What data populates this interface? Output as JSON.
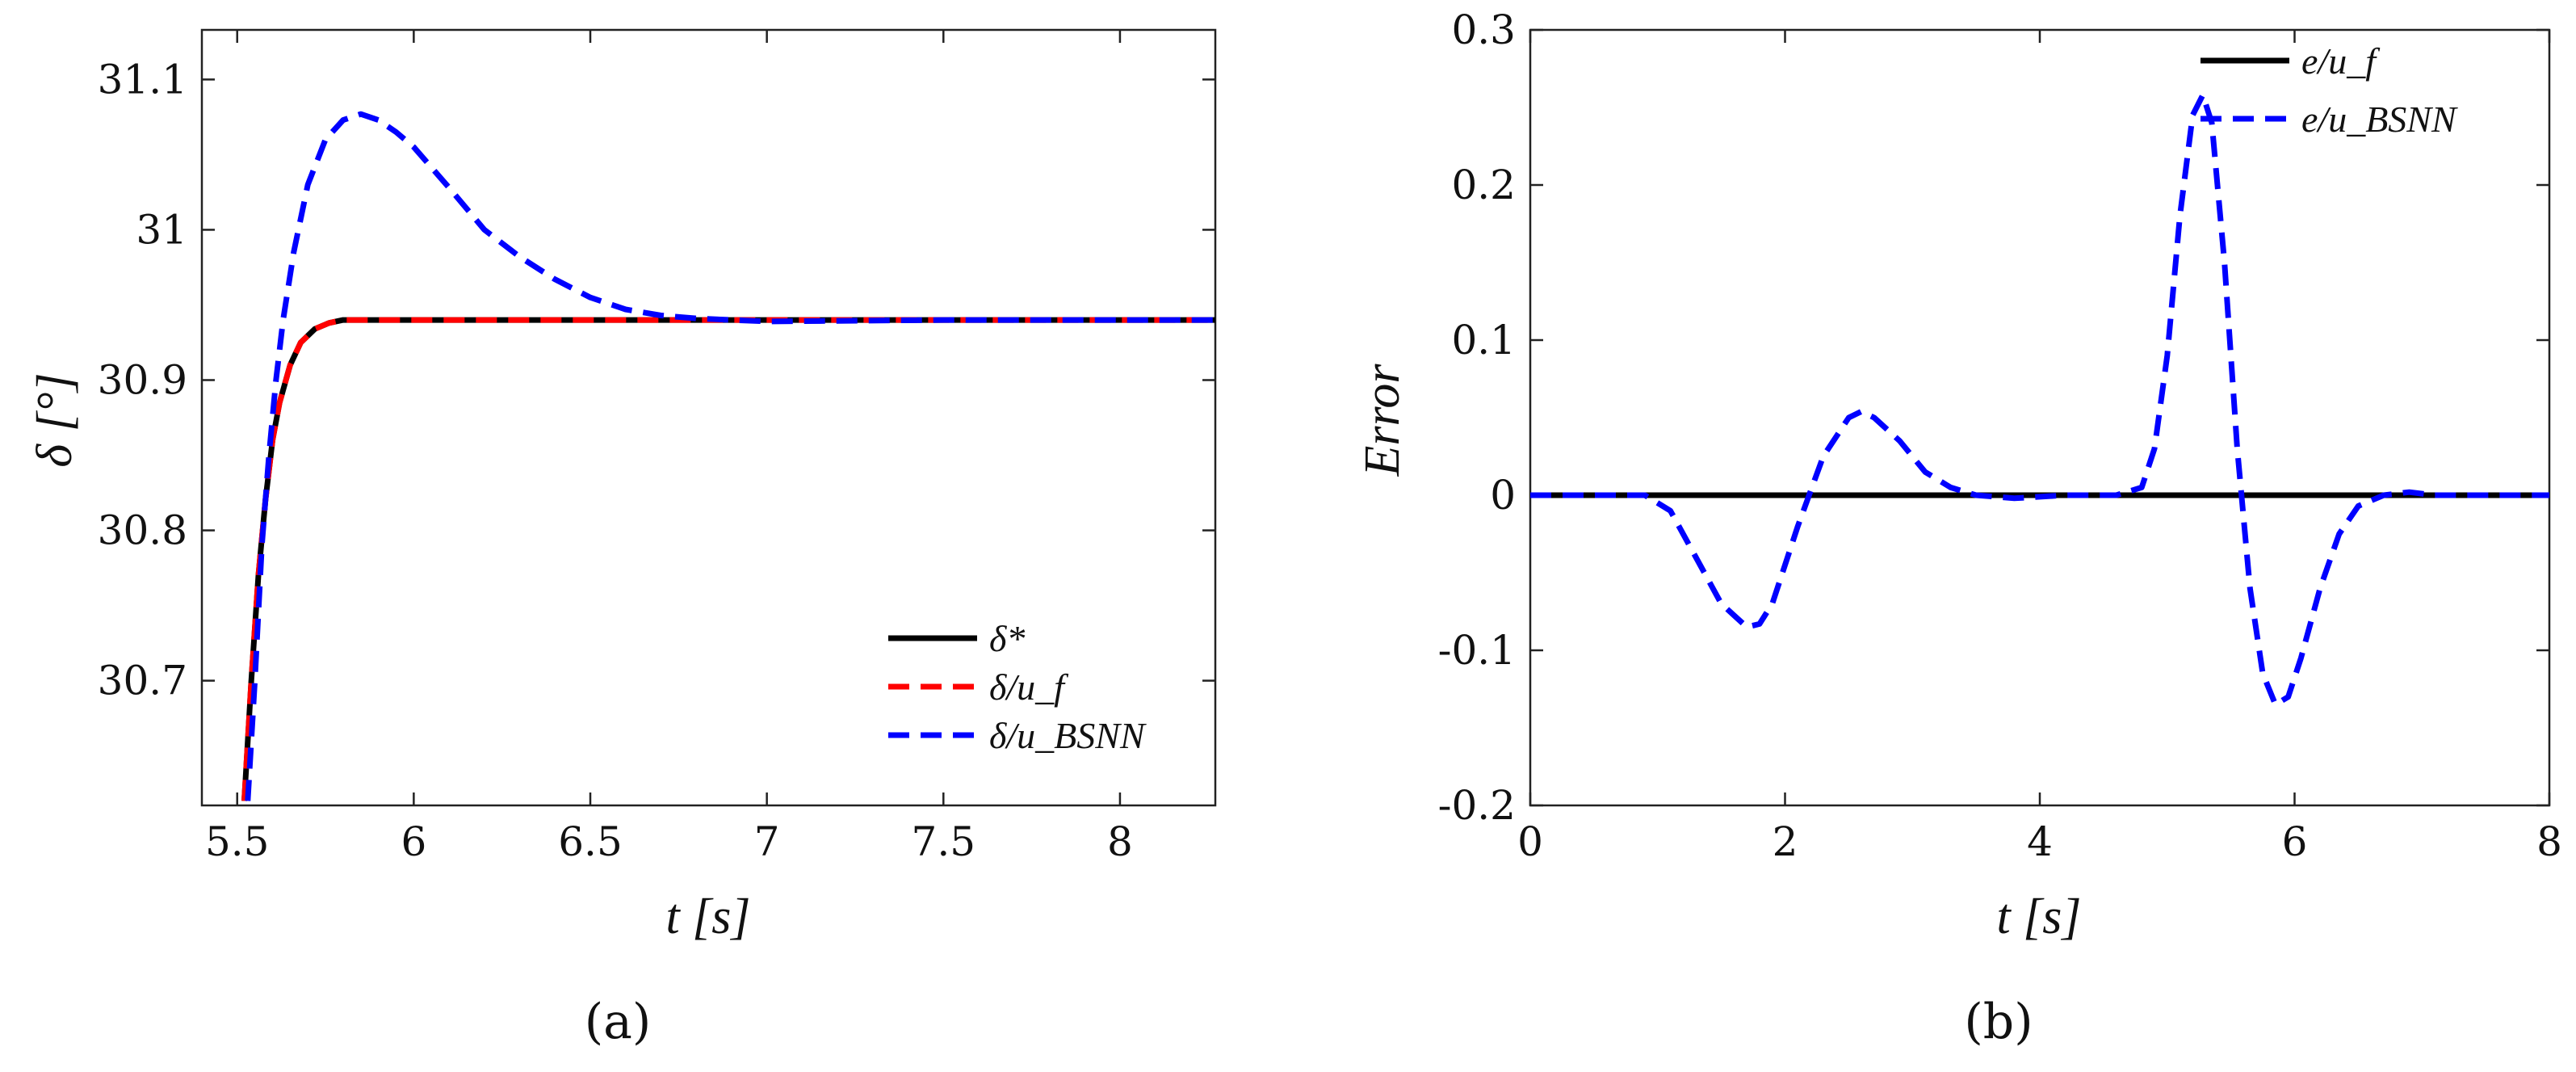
{
  "chart_data": [
    {
      "type": "line",
      "panel_label": "(a)",
      "xlabel": "t [s]",
      "ylabel": "δ [°]",
      "xlim": [
        5.4,
        8.27
      ],
      "ylim": [
        30.617,
        31.133
      ],
      "xticks": [
        5.5,
        6,
        6.5,
        7,
        7.5,
        8
      ],
      "xtick_labels": [
        "5.5",
        "6",
        "6.5",
        "7",
        "7.5",
        "8"
      ],
      "yticks": [
        30.7,
        30.8,
        30.9,
        31.0,
        31.1
      ],
      "ytick_labels": [
        "30.7",
        "30.8",
        "30.9",
        "31",
        "31.1"
      ],
      "legend_position": "bottom-right",
      "series": [
        {
          "name": "δ*",
          "color": "#000000",
          "style": "solid",
          "x": [
            5.52,
            5.54,
            5.56,
            5.58,
            5.6,
            5.62,
            5.65,
            5.68,
            5.72,
            5.76,
            5.8,
            5.9,
            6.0,
            6.5,
            7.0,
            7.5,
            8.0,
            8.27
          ],
          "y": [
            30.62,
            30.7,
            30.77,
            30.82,
            30.86,
            30.885,
            30.91,
            30.925,
            30.934,
            30.938,
            30.94,
            30.94,
            30.94,
            30.94,
            30.94,
            30.94,
            30.94,
            30.94
          ]
        },
        {
          "name": "δ/u_f",
          "color": "#ff0000",
          "style": "dashed",
          "x": [
            5.52,
            5.54,
            5.56,
            5.58,
            5.6,
            5.62,
            5.65,
            5.68,
            5.72,
            5.76,
            5.8,
            5.9,
            6.0,
            6.5,
            7.0,
            7.5,
            8.0,
            8.27
          ],
          "y": [
            30.62,
            30.7,
            30.77,
            30.82,
            30.86,
            30.885,
            30.91,
            30.925,
            30.934,
            30.938,
            30.94,
            30.94,
            30.94,
            30.94,
            30.94,
            30.94,
            30.94,
            30.94
          ]
        },
        {
          "name": "δ/u_BSNN",
          "color": "#0000ff",
          "style": "dashed",
          "x": [
            5.53,
            5.55,
            5.57,
            5.59,
            5.61,
            5.63,
            5.66,
            5.7,
            5.75,
            5.8,
            5.85,
            5.9,
            5.95,
            6.0,
            6.1,
            6.2,
            6.3,
            6.4,
            6.5,
            6.6,
            6.7,
            6.8,
            7.0,
            7.5,
            8.0,
            8.27
          ],
          "y": [
            30.62,
            30.7,
            30.79,
            30.85,
            30.9,
            30.94,
            30.985,
            31.03,
            31.06,
            31.073,
            31.077,
            31.073,
            31.065,
            31.055,
            31.028,
            31.0,
            30.982,
            30.967,
            30.955,
            30.947,
            30.943,
            30.941,
            30.939,
            30.94,
            30.94,
            30.94
          ]
        }
      ]
    },
    {
      "type": "line",
      "panel_label": "(b)",
      "xlabel": "t [s]",
      "ylabel": "Error",
      "xlim": [
        0,
        8
      ],
      "ylim": [
        -0.2,
        0.3
      ],
      "xticks": [
        0,
        2,
        4,
        6,
        8
      ],
      "xtick_labels": [
        "0",
        "2",
        "4",
        "6",
        "8"
      ],
      "yticks": [
        -0.2,
        -0.1,
        0,
        0.1,
        0.2,
        0.3
      ],
      "ytick_labels": [
        "-0.2",
        "-0.1",
        "0",
        "0.1",
        "0.2",
        "0.3"
      ],
      "legend_position": "top-right",
      "series": [
        {
          "name": "e/u_f",
          "color": "#000000",
          "style": "solid",
          "x": [
            0,
            8
          ],
          "y": [
            0,
            0
          ]
        },
        {
          "name": "e/u_BSNN",
          "color": "#0000ff",
          "style": "dashed",
          "x": [
            0,
            0.9,
            1.1,
            1.3,
            1.5,
            1.7,
            1.8,
            1.9,
            2.1,
            2.3,
            2.5,
            2.6,
            2.7,
            2.9,
            3.1,
            3.3,
            3.5,
            3.8,
            4.2,
            4.6,
            4.8,
            4.9,
            5.0,
            5.1,
            5.2,
            5.28,
            5.35,
            5.45,
            5.55,
            5.65,
            5.75,
            5.85,
            5.95,
            6.05,
            6.2,
            6.35,
            6.5,
            6.7,
            6.9,
            7.1,
            7.4,
            8.0
          ],
          "y": [
            0,
            0,
            -0.01,
            -0.04,
            -0.07,
            -0.085,
            -0.083,
            -0.07,
            -0.02,
            0.025,
            0.05,
            0.054,
            0.05,
            0.035,
            0.015,
            0.005,
            0.0,
            -0.002,
            0.0,
            0.0,
            0.005,
            0.03,
            0.09,
            0.18,
            0.245,
            0.258,
            0.24,
            0.15,
            0.03,
            -0.06,
            -0.115,
            -0.135,
            -0.13,
            -0.105,
            -0.06,
            -0.025,
            -0.007,
            0.0,
            0.002,
            0.0,
            0.0,
            0.0
          ]
        }
      ]
    }
  ]
}
